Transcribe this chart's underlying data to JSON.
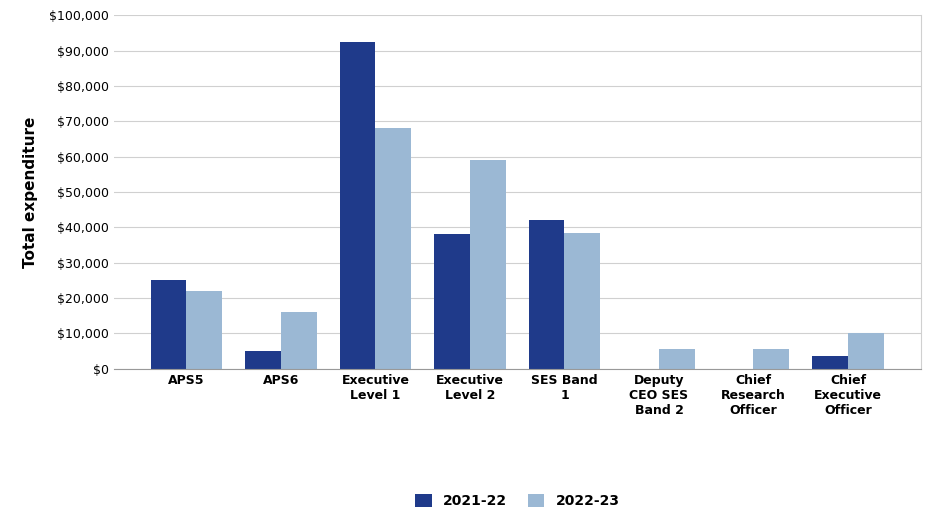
{
  "categories": [
    "APS5",
    "APS6",
    "Executive\nLevel 1",
    "Executive\nLevel 2",
    "SES Band\n1",
    "Deputy\nCEO SES\nBand 2",
    "Chief\nResearch\nOfficer",
    "Chief\nExecutive\nOfficer"
  ],
  "values_2021": [
    25000,
    5000,
    92500,
    38000,
    42000,
    0,
    0,
    3500
  ],
  "values_2022": [
    22000,
    16000,
    68000,
    59000,
    38500,
    5500,
    5500,
    10000
  ],
  "color_2021": "#1F3A8A",
  "color_2022": "#9BB8D4",
  "label_2021": "2021-22",
  "label_2022": "2022-23",
  "ylabel": "Total expenditure",
  "ylim": [
    0,
    100000
  ],
  "yticks": [
    0,
    10000,
    20000,
    30000,
    40000,
    50000,
    60000,
    70000,
    80000,
    90000,
    100000
  ],
  "background_color": "#ffffff",
  "grid_color": "#d0d0d0",
  "bar_width": 0.38,
  "legend_fontsize": 10,
  "tick_fontsize": 9,
  "ylabel_fontsize": 11
}
